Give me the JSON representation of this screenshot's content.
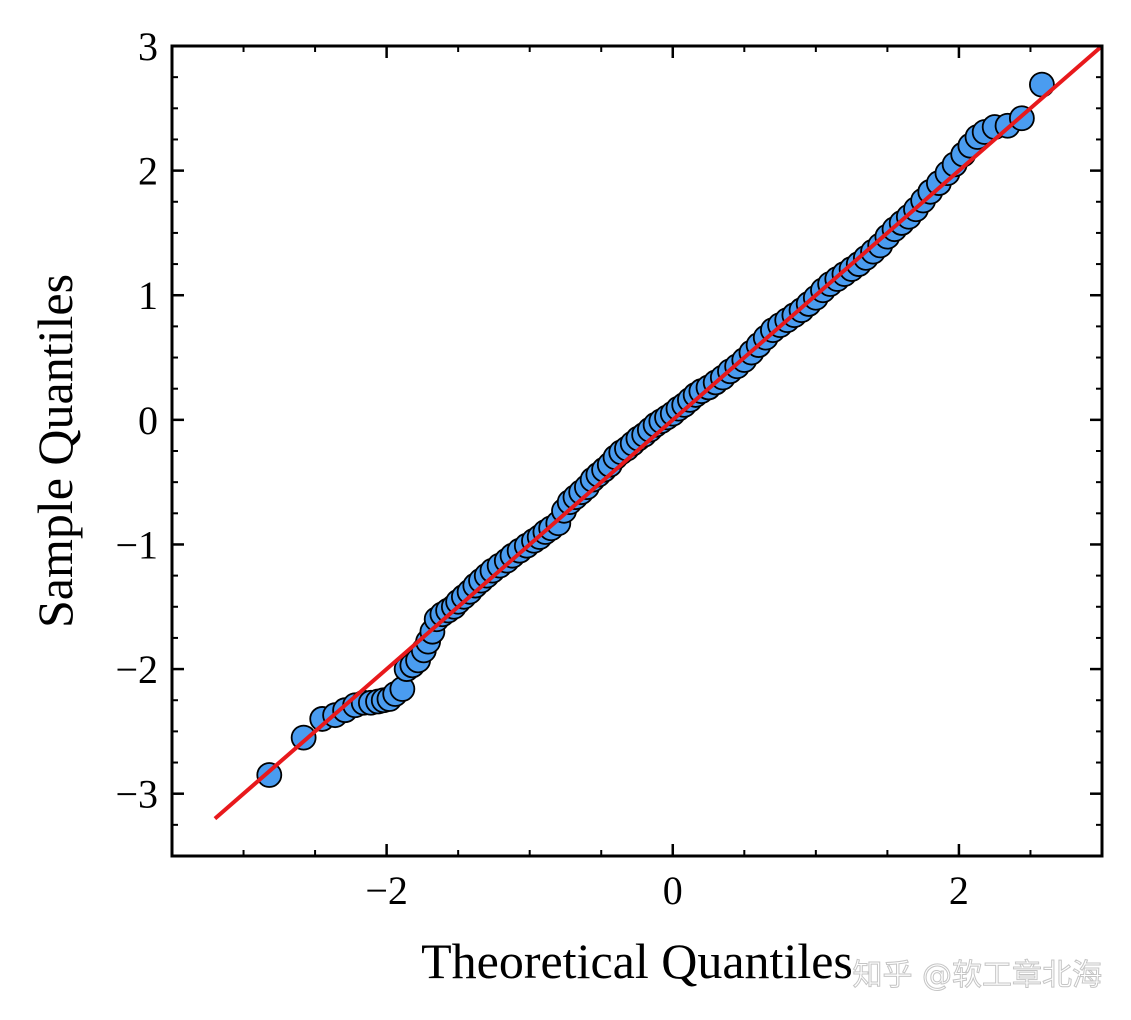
{
  "chart_data": {
    "type": "scatter",
    "title": "",
    "xlabel": "Theoretical Quantiles",
    "ylabel": "Sample Quantiles",
    "xlim": [
      -3.5,
      3.0
    ],
    "ylim": [
      -3.5,
      3.0
    ],
    "x_ticks": [
      -2,
      0,
      2
    ],
    "x_tick_labels": [
      "−2",
      "0",
      "2"
    ],
    "y_ticks": [
      -3,
      -2,
      -1,
      0,
      1,
      2,
      3
    ],
    "y_tick_labels": [
      "−3",
      "−2",
      "−1",
      "0",
      "1",
      "2",
      "3"
    ],
    "grid": false,
    "legend": "none",
    "series": [
      {
        "kind": "points",
        "color": "#4a9cf0",
        "edge_color": "#000000",
        "points": [
          [
            -2.82,
            -2.85
          ],
          [
            -2.58,
            -2.55
          ],
          [
            -2.45,
            -2.4
          ],
          [
            -2.36,
            -2.37
          ],
          [
            -2.29,
            -2.33
          ],
          [
            -2.22,
            -2.29
          ],
          [
            -2.16,
            -2.27
          ],
          [
            -2.11,
            -2.27
          ],
          [
            -2.06,
            -2.26
          ],
          [
            -2.02,
            -2.25
          ],
          [
            -1.98,
            -2.24
          ],
          [
            -1.94,
            -2.2
          ],
          [
            -1.89,
            -2.16
          ],
          [
            -1.86,
            -2.0
          ],
          [
            -1.82,
            -1.97
          ],
          [
            -1.78,
            -1.93
          ],
          [
            -1.74,
            -1.85
          ],
          [
            -1.71,
            -1.78
          ],
          [
            -1.68,
            -1.7
          ],
          [
            -1.65,
            -1.6
          ],
          [
            -1.61,
            -1.56
          ],
          [
            -1.57,
            -1.53
          ],
          [
            -1.53,
            -1.5
          ],
          [
            -1.5,
            -1.46
          ],
          [
            -1.46,
            -1.42
          ],
          [
            -1.42,
            -1.38
          ],
          [
            -1.38,
            -1.33
          ],
          [
            -1.34,
            -1.29
          ],
          [
            -1.3,
            -1.25
          ],
          [
            -1.26,
            -1.21
          ],
          [
            -1.21,
            -1.17
          ],
          [
            -1.16,
            -1.13
          ],
          [
            -1.12,
            -1.09
          ],
          [
            -1.07,
            -1.05
          ],
          [
            -1.02,
            -1.01
          ],
          [
            -0.97,
            -0.97
          ],
          [
            -0.93,
            -0.94
          ],
          [
            -0.89,
            -0.9
          ],
          [
            -0.85,
            -0.87
          ],
          [
            -0.8,
            -0.83
          ],
          [
            -0.76,
            -0.73
          ],
          [
            -0.72,
            -0.66
          ],
          [
            -0.68,
            -0.62
          ],
          [
            -0.64,
            -0.58
          ],
          [
            -0.6,
            -0.54
          ],
          [
            -0.56,
            -0.48
          ],
          [
            -0.52,
            -0.44
          ],
          [
            -0.48,
            -0.4
          ],
          [
            -0.44,
            -0.36
          ],
          [
            -0.4,
            -0.3
          ],
          [
            -0.36,
            -0.26
          ],
          [
            -0.32,
            -0.23
          ],
          [
            -0.28,
            -0.19
          ],
          [
            -0.24,
            -0.15
          ],
          [
            -0.2,
            -0.12
          ],
          [
            -0.16,
            -0.08
          ],
          [
            -0.12,
            -0.04
          ],
          [
            -0.08,
            -0.01
          ],
          [
            -0.04,
            0.02
          ],
          [
            0.0,
            0.05
          ],
          [
            0.04,
            0.09
          ],
          [
            0.08,
            0.12
          ],
          [
            0.12,
            0.16
          ],
          [
            0.16,
            0.2
          ],
          [
            0.2,
            0.23
          ],
          [
            0.25,
            0.26
          ],
          [
            0.3,
            0.3
          ],
          [
            0.35,
            0.34
          ],
          [
            0.4,
            0.39
          ],
          [
            0.45,
            0.43
          ],
          [
            0.5,
            0.48
          ],
          [
            0.55,
            0.54
          ],
          [
            0.6,
            0.6
          ],
          [
            0.65,
            0.66
          ],
          [
            0.7,
            0.72
          ],
          [
            0.75,
            0.76
          ],
          [
            0.8,
            0.8
          ],
          [
            0.85,
            0.84
          ],
          [
            0.9,
            0.88
          ],
          [
            0.95,
            0.93
          ],
          [
            1.0,
            0.98
          ],
          [
            1.05,
            1.04
          ],
          [
            1.1,
            1.09
          ],
          [
            1.15,
            1.13
          ],
          [
            1.2,
            1.17
          ],
          [
            1.25,
            1.21
          ],
          [
            1.3,
            1.25
          ],
          [
            1.35,
            1.3
          ],
          [
            1.4,
            1.35
          ],
          [
            1.45,
            1.4
          ],
          [
            1.5,
            1.47
          ],
          [
            1.55,
            1.53
          ],
          [
            1.6,
            1.58
          ],
          [
            1.65,
            1.63
          ],
          [
            1.7,
            1.69
          ],
          [
            1.75,
            1.76
          ],
          [
            1.8,
            1.83
          ],
          [
            1.86,
            1.9
          ],
          [
            1.92,
            1.98
          ],
          [
            1.97,
            2.05
          ],
          [
            2.03,
            2.13
          ],
          [
            2.08,
            2.2
          ],
          [
            2.13,
            2.27
          ],
          [
            2.18,
            2.31
          ],
          [
            2.25,
            2.35
          ],
          [
            2.34,
            2.36
          ],
          [
            2.44,
            2.42
          ],
          [
            2.58,
            2.69
          ]
        ]
      },
      {
        "kind": "reference-line",
        "color": "#e8191c",
        "x": [
          -3.2,
          3.0
        ],
        "y": [
          -3.2,
          3.0
        ]
      }
    ]
  },
  "watermark": "知乎 @软工章北海"
}
